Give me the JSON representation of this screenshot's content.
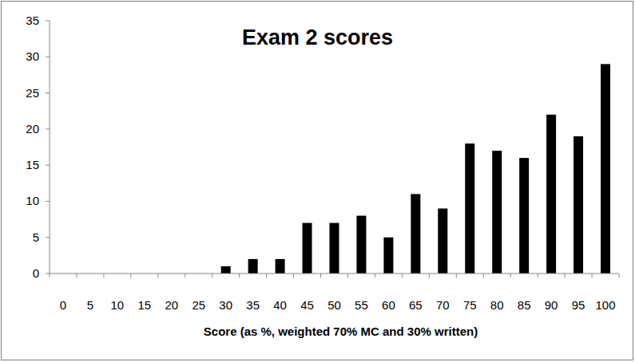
{
  "chart_data": {
    "type": "bar",
    "title": "Exam 2 scores",
    "x_label": "Score (as %, weighted 70% MC and 30% written)",
    "categories": [
      "0",
      "5",
      "10",
      "15",
      "20",
      "25",
      "30",
      "35",
      "40",
      "45",
      "50",
      "55",
      "60",
      "65",
      "70",
      "75",
      "80",
      "85",
      "90",
      "95",
      "100"
    ],
    "values": [
      0,
      0,
      0,
      0,
      0,
      0,
      1,
      2,
      2,
      7,
      7,
      8,
      5,
      11,
      9,
      18,
      17,
      16,
      22,
      19,
      29
    ],
    "color": "#000000",
    "ylim": [
      0,
      35
    ],
    "yticks": [
      0,
      5,
      10,
      15,
      20,
      25,
      30,
      35
    ],
    "grid": false
  }
}
